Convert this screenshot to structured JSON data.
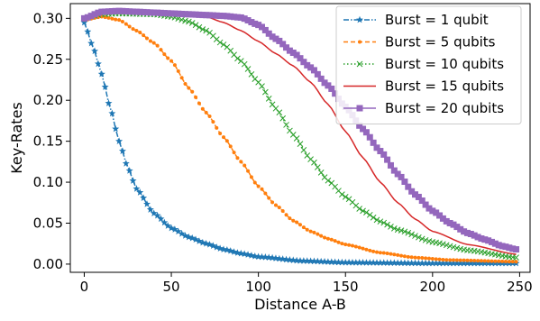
{
  "chart_data": {
    "type": "line",
    "xlabel": "Distance A-B",
    "ylabel": "Key-Rates",
    "xlim": [
      -8,
      256
    ],
    "ylim": [
      -0.01,
      0.318
    ],
    "xticks": [
      0,
      50,
      100,
      150,
      200,
      250
    ],
    "yticks": [
      0.0,
      0.05,
      0.1,
      0.15,
      0.2,
      0.25,
      0.3
    ],
    "xtick_labels": [
      "0",
      "50",
      "100",
      "150",
      "200",
      "250"
    ],
    "ytick_labels": [
      "0.00",
      "0.05",
      "0.10",
      "0.15",
      "0.20",
      "0.25",
      "0.30"
    ],
    "grid": false,
    "legend_position": "top-right",
    "x_step": 2,
    "series": [
      {
        "name": "Burst = 1 qubit",
        "color": "#1f77b4",
        "line_style": "dashdot",
        "marker": "star",
        "x": [
          0,
          5,
          10,
          15,
          20,
          25,
          30,
          40,
          50,
          60,
          70,
          80,
          90,
          100,
          125,
          150,
          200,
          248
        ],
        "y": [
          0.295,
          0.265,
          0.232,
          0.19,
          0.15,
          0.118,
          0.092,
          0.062,
          0.044,
          0.033,
          0.025,
          0.018,
          0.013,
          0.009,
          0.004,
          0.002,
          0.001,
          0.001
        ]
      },
      {
        "name": "Burst = 5 qubits",
        "color": "#ff7f0e",
        "line_style": "dashed",
        "marker": "dot",
        "x": [
          0,
          10,
          20,
          30,
          40,
          50,
          60,
          70,
          80,
          90,
          100,
          110,
          120,
          130,
          140,
          150,
          170,
          190,
          210,
          248
        ],
        "y": [
          0.298,
          0.302,
          0.298,
          0.285,
          0.27,
          0.248,
          0.215,
          0.185,
          0.155,
          0.125,
          0.095,
          0.072,
          0.053,
          0.04,
          0.031,
          0.024,
          0.014,
          0.008,
          0.005,
          0.003
        ]
      },
      {
        "name": "Burst = 10 qubits",
        "color": "#2ca02c",
        "line_style": "dotted",
        "marker": "x",
        "x": [
          0,
          10,
          20,
          40,
          50,
          60,
          70,
          80,
          90,
          100,
          110,
          120,
          130,
          140,
          150,
          160,
          170,
          180,
          200,
          220,
          248
        ],
        "y": [
          0.3,
          0.305,
          0.306,
          0.305,
          0.302,
          0.296,
          0.285,
          0.268,
          0.248,
          0.222,
          0.19,
          0.158,
          0.128,
          0.102,
          0.082,
          0.065,
          0.052,
          0.042,
          0.027,
          0.017,
          0.008
        ]
      },
      {
        "name": "Burst = 15 qubits",
        "color": "#d62728",
        "line_style": "solid",
        "marker": "none",
        "x": [
          0,
          10,
          20,
          40,
          50,
          60,
          70,
          80,
          90,
          100,
          110,
          120,
          130,
          140,
          150,
          160,
          170,
          180,
          190,
          200,
          220,
          248
        ],
        "y": [
          0.3,
          0.307,
          0.309,
          0.308,
          0.308,
          0.307,
          0.302,
          0.295,
          0.285,
          0.272,
          0.257,
          0.242,
          0.222,
          0.195,
          0.162,
          0.13,
          0.1,
          0.075,
          0.055,
          0.04,
          0.024,
          0.012
        ]
      },
      {
        "name": "Burst = 20 qubits",
        "color": "#9467bd",
        "line_style": "solid",
        "marker": "square",
        "x": [
          0,
          10,
          20,
          30,
          40,
          50,
          60,
          70,
          80,
          90,
          100,
          110,
          120,
          130,
          140,
          150,
          160,
          170,
          180,
          190,
          200,
          210,
          220,
          230,
          240,
          248
        ],
        "y": [
          0.3,
          0.308,
          0.309,
          0.308,
          0.307,
          0.306,
          0.305,
          0.304,
          0.303,
          0.301,
          0.292,
          0.275,
          0.258,
          0.24,
          0.218,
          0.192,
          0.165,
          0.138,
          0.11,
          0.085,
          0.065,
          0.05,
          0.038,
          0.03,
          0.022,
          0.018
        ]
      }
    ]
  }
}
